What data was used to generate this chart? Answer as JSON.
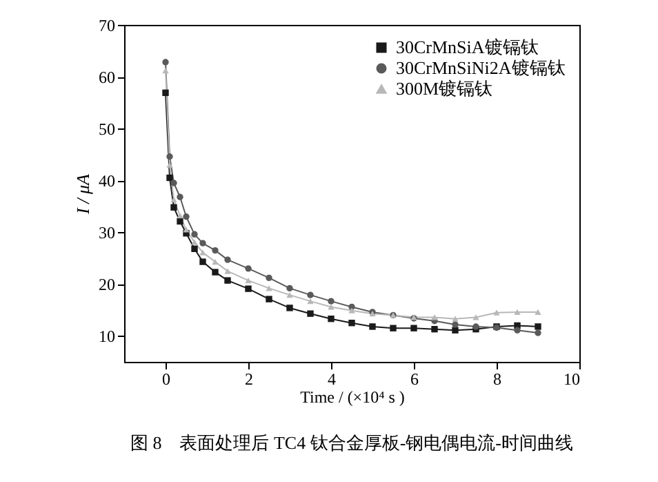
{
  "chart_data": {
    "type": "line",
    "xlabel": "Time / (×10⁴ s )",
    "ylabel": "I / μA",
    "x": [
      0,
      0.1,
      0.2,
      0.35,
      0.5,
      0.7,
      0.9,
      1.2,
      1.5,
      2,
      2.5,
      3,
      3.5,
      4,
      4.5,
      5,
      5.5,
      6,
      6.5,
      7,
      7.5,
      8,
      8.5,
      9
    ],
    "series": [
      {
        "name": "30CrMnSiA镀镉钛",
        "color": "#1a1a1a",
        "marker": "square",
        "values": [
          56.9,
          40.5,
          34.8,
          32.1,
          29.8,
          26.8,
          24.3,
          22.3,
          20.7,
          19.1,
          17.1,
          15.4,
          14.3,
          13.3,
          12.5,
          11.8,
          11.5,
          11.5,
          11.3,
          11.1,
          11.3,
          11.8,
          12.0,
          11.8
        ]
      },
      {
        "name": "30CrMnSiNi2A镀镉钛",
        "color": "#5a5a5a",
        "marker": "circle",
        "values": [
          62.8,
          44.6,
          39.5,
          36.8,
          33.0,
          29.6,
          27.9,
          26.5,
          24.7,
          23.0,
          21.2,
          19.2,
          17.9,
          16.7,
          15.6,
          14.6,
          14.0,
          13.4,
          12.9,
          12.2,
          11.8,
          11.6,
          11.1,
          10.6
        ]
      },
      {
        "name": "300M镀镉钛",
        "color": "#b8b8b8",
        "marker": "triangle",
        "values": [
          61.2,
          43.0,
          36.3,
          33.2,
          30.5,
          28.1,
          26.1,
          24.3,
          22.5,
          20.7,
          19.2,
          17.9,
          16.7,
          15.6,
          14.9,
          14.3,
          14.0,
          13.6,
          13.6,
          13.3,
          13.6,
          14.5,
          14.6,
          14.6
        ]
      }
    ],
    "xlim": [
      -1,
      10
    ],
    "xticks": [
      0,
      2,
      4,
      6,
      8,
      10
    ],
    "ylim": [
      5,
      70
    ],
    "yticks": [
      10,
      20,
      30,
      40,
      50,
      60,
      70
    ],
    "grid": false,
    "legend": "top right",
    "line_style": "solid",
    "annotations": [
      "图 8　表面处理后 TC4 钛合金厚板-钢电偶电流-时间曲线"
    ]
  }
}
